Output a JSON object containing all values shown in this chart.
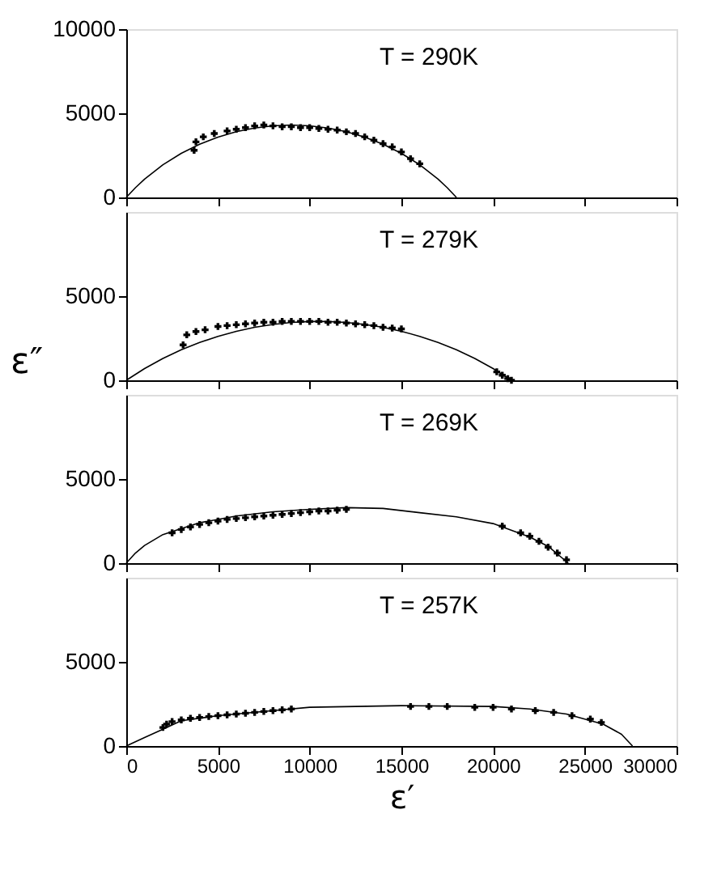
{
  "chart_data": [
    {
      "type": "scatter",
      "annotations": [
        "T = 290K"
      ],
      "xlim": [
        0,
        30000
      ],
      "xticks": [
        0,
        5000,
        10000,
        15000,
        20000,
        25000,
        30000
      ],
      "ylim": [
        0,
        10000
      ],
      "yticks": [
        0,
        5000,
        10000
      ],
      "tick_labels": "y",
      "grid": false,
      "series": [
        {
          "type": "line",
          "color": "#000000",
          "x": [
            0,
            500,
            1000,
            2000,
            3000,
            4000,
            5000,
            6000,
            7000,
            8000,
            9000,
            10000,
            11000,
            12000,
            13000,
            14000,
            15000,
            16000,
            17000,
            17500,
            18000
          ],
          "values": [
            0,
            577,
            1087,
            1941,
            2621,
            3163,
            3586,
            3903,
            4125,
            4256,
            4300,
            4256,
            4125,
            3903,
            3586,
            3163,
            2621,
            1941,
            1087,
            577,
            0
          ]
        },
        {
          "marker": "cross",
          "color": "#000000",
          "x": [
            3700,
            3800,
            4200,
            4800,
            5500,
            6000,
            6500,
            7000,
            7500,
            8000,
            8500,
            9000,
            9500,
            10000,
            10500,
            11000,
            11500,
            12000,
            12500,
            13000,
            13500,
            14000,
            14500,
            15000,
            15500,
            16000
          ],
          "values": [
            2800,
            3300,
            3600,
            3800,
            3950,
            4050,
            4150,
            4250,
            4300,
            4250,
            4200,
            4200,
            4150,
            4150,
            4100,
            4050,
            4000,
            3900,
            3800,
            3600,
            3400,
            3200,
            3000,
            2700,
            2300,
            2000
          ]
        }
      ]
    },
    {
      "type": "scatter",
      "annotations": [
        "T = 279K"
      ],
      "ylabel": "ε″",
      "xlim": [
        0,
        30000
      ],
      "xticks": [
        0,
        5000,
        10000,
        15000,
        20000,
        25000,
        30000
      ],
      "ylim": [
        0,
        10000
      ],
      "yticks": [
        0,
        5000
      ],
      "tick_labels": "y",
      "grid": false,
      "series": [
        {
          "type": "line",
          "color": "#000000",
          "x": [
            0,
            1000,
            2000,
            3000,
            4000,
            5000,
            6000,
            7000,
            8000,
            9000,
            10000,
            10500,
            11000,
            12000,
            13000,
            14000,
            15000,
            16000,
            17000,
            18000,
            19000,
            20000,
            21000
          ],
          "values": [
            0,
            697,
            1297,
            1811,
            2248,
            2613,
            2912,
            3146,
            3321,
            3436,
            3493,
            3500,
            3493,
            3436,
            3321,
            3146,
            2912,
            2613,
            2248,
            1811,
            1297,
            697,
            0
          ]
        },
        {
          "marker": "cross",
          "color": "#000000",
          "x": [
            3100,
            3300,
            3800,
            4300,
            5000,
            5500,
            6000,
            6500,
            7000,
            7500,
            8000,
            8500,
            9000,
            9500,
            10000,
            10500,
            11000,
            11500,
            12000,
            12500,
            13000,
            13500,
            14000,
            14500,
            15000,
            20200,
            20500,
            20800,
            21000
          ],
          "values": [
            2100,
            2700,
            2900,
            3000,
            3200,
            3250,
            3300,
            3350,
            3400,
            3450,
            3450,
            3500,
            3500,
            3500,
            3500,
            3500,
            3450,
            3450,
            3400,
            3350,
            3300,
            3250,
            3150,
            3100,
            3050,
            500,
            300,
            100,
            0
          ]
        }
      ]
    },
    {
      "type": "scatter",
      "annotations": [
        "T = 269K"
      ],
      "xlim": [
        0,
        30000
      ],
      "xticks": [
        0,
        5000,
        10000,
        15000,
        20000,
        25000,
        30000
      ],
      "ylim": [
        0,
        10000
      ],
      "yticks": [
        0,
        5000
      ],
      "tick_labels": "y",
      "grid": false,
      "series": [
        {
          "type": "line",
          "color": "#000000",
          "x": [
            0,
            500,
            1000,
            2000,
            2700,
            4000,
            6000,
            8000,
            10000,
            12000,
            14000,
            16000,
            18000,
            20000,
            22000,
            23000,
            24100
          ],
          "values": [
            0,
            600,
            1050,
            1700,
            1950,
            2400,
            2800,
            3050,
            3200,
            3300,
            3250,
            3000,
            2750,
            2350,
            1550,
            1000,
            0
          ]
        },
        {
          "marker": "cross",
          "color": "#000000",
          "x": [
            2500,
            3000,
            3500,
            4000,
            4500,
            5000,
            5500,
            6000,
            6500,
            7000,
            7500,
            8000,
            8500,
            9000,
            9500,
            10000,
            10500,
            11000,
            11500,
            12000,
            20500,
            21500,
            22000,
            22500,
            23000,
            23500,
            24000
          ],
          "values": [
            1800,
            2000,
            2150,
            2300,
            2400,
            2500,
            2600,
            2650,
            2700,
            2750,
            2800,
            2850,
            2900,
            2950,
            3000,
            3050,
            3100,
            3100,
            3150,
            3200,
            2200,
            1800,
            1600,
            1300,
            950,
            600,
            200
          ]
        }
      ]
    },
    {
      "type": "scatter",
      "annotations": [
        "T = 257K"
      ],
      "xlabel": "ε′",
      "xlim": [
        0,
        30000
      ],
      "xticks": [
        0,
        5000,
        10000,
        15000,
        20000,
        25000,
        30000
      ],
      "ylim": [
        0,
        10000
      ],
      "yticks": [
        0,
        5000
      ],
      "grid": false,
      "series": [
        {
          "type": "line",
          "color": "#000000",
          "x": [
            0,
            1000,
            2000,
            3000,
            5000,
            8000,
            10000,
            15000,
            20000,
            22000,
            24000,
            26000,
            27000,
            27600
          ],
          "values": [
            0,
            500,
            1000,
            1500,
            1800,
            2100,
            2300,
            2400,
            2350,
            2200,
            1900,
            1300,
            700,
            0
          ]
        },
        {
          "marker": "cross",
          "color": "#000000",
          "x": [
            2000,
            2200,
            2500,
            3000,
            3500,
            4000,
            4500,
            5000,
            5500,
            6000,
            6500,
            7000,
            7500,
            8000,
            8500,
            9000,
            15500,
            16500,
            17500,
            19000,
            20000,
            21000,
            22300,
            23300,
            24300,
            25300,
            25900
          ],
          "values": [
            1100,
            1300,
            1450,
            1550,
            1650,
            1700,
            1750,
            1800,
            1850,
            1900,
            1950,
            2000,
            2050,
            2100,
            2150,
            2200,
            2350,
            2350,
            2350,
            2300,
            2300,
            2200,
            2100,
            2000,
            1800,
            1600,
            1400
          ]
        }
      ]
    }
  ]
}
